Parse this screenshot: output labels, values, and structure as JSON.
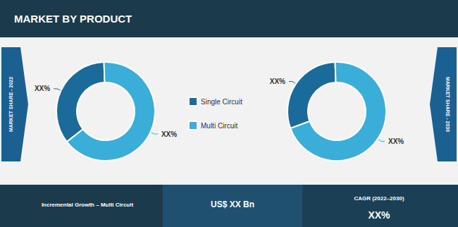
{
  "chart_data": [
    {
      "type": "pie",
      "title": "MARKET BY PRODUCT",
      "subtitle": "MARKET SHARE - 2022",
      "categories": [
        "Single Circuit",
        "Multi Circuit"
      ],
      "values": [
        35,
        65
      ],
      "value_labels": [
        "XX%",
        "XX%"
      ],
      "colors": [
        "#1a6b9a",
        "#3aaed8"
      ],
      "data_labels": true,
      "legend": "center",
      "annotations": [
        "Incremental Growth – Multi Circuit",
        "US$ XX Bn",
        "CAGR (2022–2030)",
        "XX%"
      ]
    },
    {
      "type": "pie",
      "subtitle": "MARKET SHARE - 2030",
      "categories": [
        "Single Circuit",
        "Multi Circuit"
      ],
      "values": [
        30,
        70
      ],
      "value_labels": [
        "XX%",
        "XX%"
      ],
      "colors": [
        "#1a6b9a",
        "#3aaed8"
      ],
      "data_labels": true
    }
  ]
}
